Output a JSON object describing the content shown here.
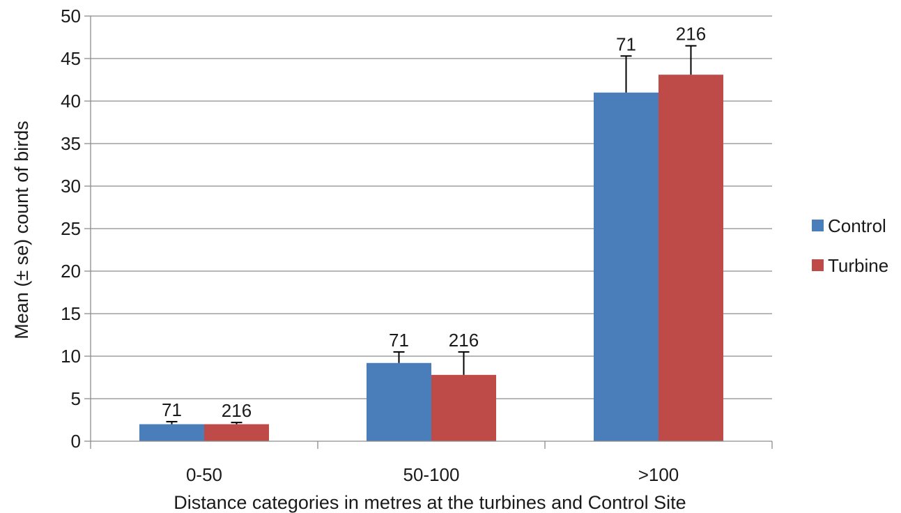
{
  "chart_data": {
    "type": "bar",
    "title": "",
    "xlabel": "Distance categories in metres at the turbines and Control Site",
    "ylabel": "Mean (± se) count of birds",
    "categories": [
      "0-50",
      "50-100",
      ">100"
    ],
    "ylim": [
      0,
      50
    ],
    "yticks": [
      0,
      5,
      10,
      15,
      20,
      25,
      30,
      35,
      40,
      45,
      50
    ],
    "grid": true,
    "legend": "right",
    "series": [
      {
        "name": "Control",
        "color": "#4A7EBB",
        "values": [
          2.0,
          9.2,
          41.0
        ],
        "se": [
          0.3,
          1.3,
          4.3
        ],
        "labels": [
          "71",
          "71",
          "71"
        ]
      },
      {
        "name": "Turbine",
        "color": "#BE4B48",
        "values": [
          2.0,
          7.8,
          43.1
        ],
        "se": [
          0.2,
          2.7,
          3.4
        ],
        "labels": [
          "216",
          "216",
          "216"
        ]
      }
    ]
  }
}
